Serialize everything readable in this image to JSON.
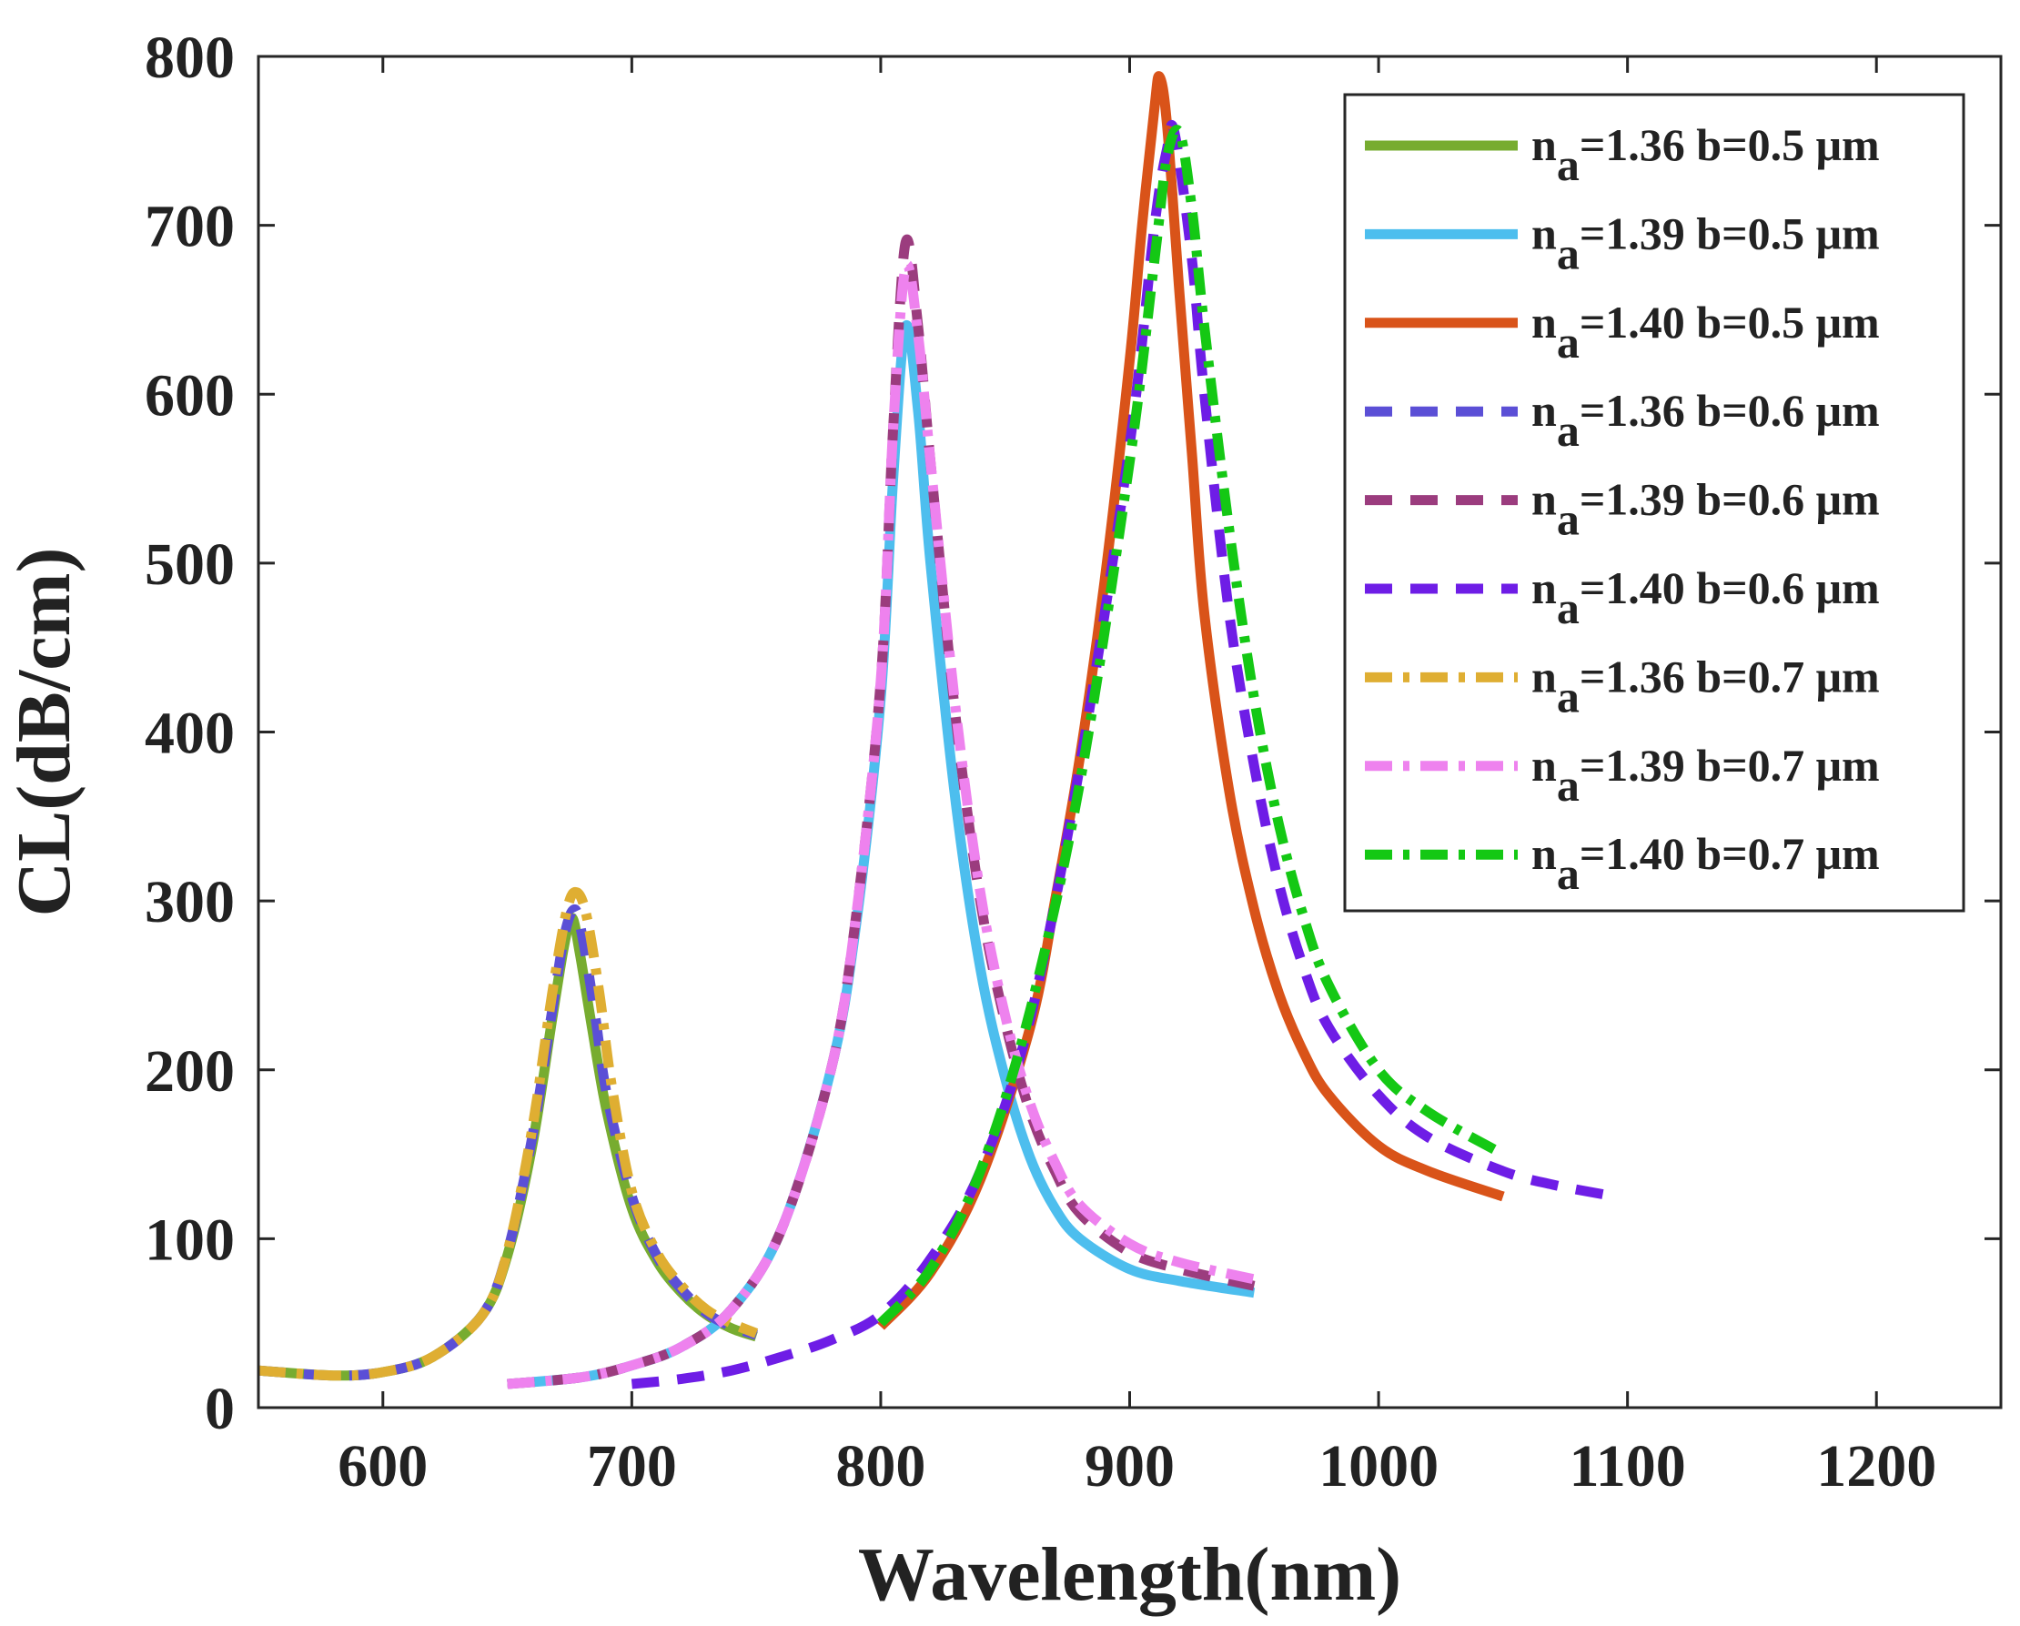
{
  "chart_data": {
    "type": "line",
    "title": "",
    "xlabel": "Wavelength(nm)",
    "ylabel": "CL(dB/cm)",
    "xlim": [
      550,
      1250
    ],
    "ylim": [
      0,
      800
    ],
    "xticks": [
      600,
      700,
      800,
      900,
      1000,
      1100,
      1200
    ],
    "yticks": [
      0,
      100,
      200,
      300,
      400,
      500,
      600,
      700,
      800
    ],
    "grid": false,
    "legend_position": "top-right",
    "series": [
      {
        "name": "n_a=1.36 b=0.5 μm",
        "label_main": "n",
        "label_sub": "a",
        "label_rest": "=1.36 b=0.5 μm",
        "color": "#77AC30",
        "dash": "solid",
        "x": [
          550,
          580,
          600,
          620,
          640,
          650,
          660,
          668,
          673,
          676,
          679,
          684,
          690,
          700,
          710,
          720,
          730,
          740,
          750
        ],
        "y": [
          22,
          19,
          21,
          30,
          55,
          90,
          155,
          230,
          275,
          290,
          270,
          225,
          175,
          118,
          87,
          68,
          55,
          47,
          42
        ]
      },
      {
        "name": "n_a=1.39 b=0.5 μm",
        "label_main": "n",
        "label_sub": "a",
        "label_rest": "=1.39 b=0.5 μm",
        "color": "#4DBEEE",
        "dash": "solid",
        "x": [
          650,
          680,
          700,
          720,
          740,
          760,
          780,
          790,
          800,
          805,
          810,
          815,
          820,
          830,
          840,
          850,
          860,
          870,
          880,
          900,
          920,
          950
        ],
        "y": [
          14,
          18,
          25,
          36,
          58,
          105,
          200,
          285,
          420,
          550,
          640,
          590,
          500,
          360,
          260,
          195,
          148,
          118,
          100,
          82,
          75,
          68
        ]
      },
      {
        "name": "n_a=1.40 b=0.5 μm",
        "label_main": "n",
        "label_sub": "a",
        "label_rest": "=1.40 b=0.5 μm",
        "color": "#D95319",
        "dash": "solid",
        "x": [
          800,
          820,
          840,
          860,
          870,
          880,
          890,
          900,
          905,
          910,
          912,
          915,
          920,
          925,
          930,
          940,
          950,
          960,
          970,
          980,
          1000,
          1020,
          1050
        ],
        "y": [
          48,
          80,
          135,
          225,
          300,
          385,
          490,
          620,
          700,
          770,
          788,
          760,
          660,
          565,
          470,
          365,
          295,
          245,
          210,
          185,
          155,
          140,
          125
        ]
      },
      {
        "name": "n_a=1.36 b=0.6 μm",
        "label_main": "n",
        "label_sub": "a",
        "label_rest": "=1.36 b=0.6 μm",
        "color": "#5B4FD6",
        "dash": "dashed",
        "x": [
          550,
          580,
          600,
          620,
          640,
          650,
          660,
          668,
          673,
          677,
          680,
          685,
          690,
          700,
          710,
          720,
          730,
          740,
          750
        ],
        "y": [
          22,
          19,
          21,
          30,
          55,
          92,
          160,
          235,
          280,
          295,
          280,
          235,
          185,
          125,
          90,
          70,
          56,
          48,
          43
        ]
      },
      {
        "name": "n_a=1.39 b=0.6 μm",
        "label_main": "n",
        "label_sub": "a",
        "label_rest": "=1.39 b=0.6 μm",
        "color": "#9B3C7E",
        "dash": "dashed",
        "x": [
          650,
          680,
          700,
          720,
          740,
          760,
          780,
          790,
          800,
          805,
          810,
          815,
          820,
          830,
          840,
          850,
          860,
          870,
          880,
          900,
          920,
          950
        ],
        "y": [
          14,
          18,
          25,
          36,
          58,
          105,
          200,
          290,
          430,
          580,
          690,
          640,
          560,
          410,
          300,
          228,
          175,
          140,
          115,
          92,
          82,
          72
        ]
      },
      {
        "name": "n_a=1.40 b=0.6 μm",
        "label_main": "n",
        "label_sub": "a",
        "label_rest": "=1.40 b=0.6 μm",
        "color": "#6E1DE6",
        "dash": "dashed",
        "x": [
          700,
          720,
          740,
          760,
          780,
          800,
          820,
          840,
          860,
          880,
          900,
          910,
          915,
          918,
          925,
          930,
          940,
          950,
          960,
          970,
          980,
          1000,
          1020,
          1050,
          1070,
          1095
        ],
        "y": [
          14,
          17,
          22,
          30,
          40,
          55,
          88,
          140,
          230,
          380,
          570,
          700,
          745,
          755,
          680,
          600,
          470,
          380,
          310,
          260,
          225,
          185,
          160,
          140,
          132,
          125
        ]
      },
      {
        "name": "n_a=1.36 b=0.7 μm",
        "label_main": "n",
        "label_sub": "a",
        "label_rest": "=1.36 b=0.7 μm",
        "color": "#DFAE32",
        "dash": "dashdot",
        "x": [
          550,
          580,
          600,
          620,
          640,
          650,
          660,
          668,
          674,
          678,
          682,
          687,
          692,
          700,
          710,
          720,
          730,
          740,
          750
        ],
        "y": [
          22,
          19,
          21,
          30,
          55,
          92,
          165,
          245,
          295,
          305,
          290,
          245,
          190,
          128,
          92,
          72,
          58,
          50,
          44
        ]
      },
      {
        "name": "n_a=1.39 b=0.7 μm",
        "label_main": "n",
        "label_sub": "a",
        "label_rest": "=1.39 b=0.7 μm",
        "color": "#EE82EE",
        "dash": "dashdot",
        "x": [
          650,
          680,
          700,
          720,
          740,
          760,
          780,
          790,
          800,
          805,
          810,
          815,
          820,
          830,
          840,
          850,
          860,
          870,
          880,
          900,
          920,
          950
        ],
        "y": [
          14,
          18,
          25,
          36,
          58,
          105,
          200,
          290,
          430,
          580,
          675,
          635,
          560,
          415,
          305,
          232,
          180,
          145,
          120,
          97,
          86,
          76
        ]
      },
      {
        "name": "n_a=1.40 b=0.7 μm",
        "label_main": "n",
        "label_sub": "a",
        "label_rest": "=1.40 b=0.7 μm",
        "color": "#14C814",
        "dash": "dashdot",
        "x": [
          800,
          820,
          840,
          860,
          880,
          900,
          910,
          915,
          920,
          925,
          930,
          940,
          950,
          960,
          970,
          980,
          1000,
          1020,
          1050
        ],
        "y": [
          50,
          82,
          140,
          235,
          370,
          560,
          680,
          740,
          755,
          710,
          640,
          520,
          420,
          345,
          290,
          250,
          200,
          175,
          150
        ]
      }
    ]
  }
}
